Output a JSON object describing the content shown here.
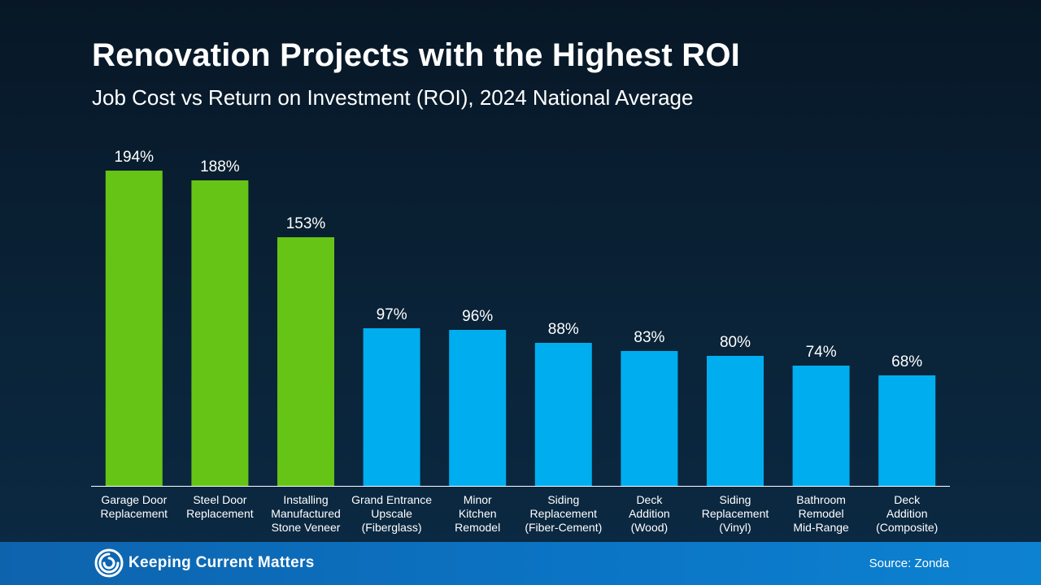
{
  "footer": {
    "brand": "Keeping Current Matters",
    "source": "Source: Zonda"
  },
  "colors": {
    "highlight": "#66c416",
    "base": "#00aeef",
    "axis": "#ffffff"
  },
  "chart_data": {
    "type": "bar",
    "title": "Renovation Projects with the Highest ROI",
    "subtitle": "Job Cost vs Return on Investment (ROI), 2024 National Average",
    "xlabel": "",
    "ylabel": "",
    "ylim": [
      0,
      200
    ],
    "grid": false,
    "categories": [
      [
        "Garage Door",
        "Replacement"
      ],
      [
        "Steel Door",
        "Replacement"
      ],
      [
        "Installing",
        "Manufactured",
        "Stone Veneer"
      ],
      [
        "Grand Entrance",
        "Upscale",
        "(Fiberglass)"
      ],
      [
        "Minor",
        "Kitchen",
        "Remodel"
      ],
      [
        "Siding",
        "Replacement",
        "(Fiber-Cement)"
      ],
      [
        "Deck",
        "Addition",
        "(Wood)"
      ],
      [
        "Siding",
        "Replacement",
        "(Vinyl)"
      ],
      [
        "Bathroom",
        "Remodel",
        "Mid-Range"
      ],
      [
        "Deck",
        "Addition",
        "(Composite)"
      ]
    ],
    "values": [
      194,
      188,
      153,
      97,
      96,
      88,
      83,
      80,
      74,
      68
    ],
    "labels": [
      "194%",
      "188%",
      "153%",
      "97%",
      "96%",
      "88%",
      "83%",
      "80%",
      "74%",
      "68%"
    ],
    "highlighted": [
      true,
      true,
      true,
      false,
      false,
      false,
      false,
      false,
      false,
      false
    ]
  }
}
